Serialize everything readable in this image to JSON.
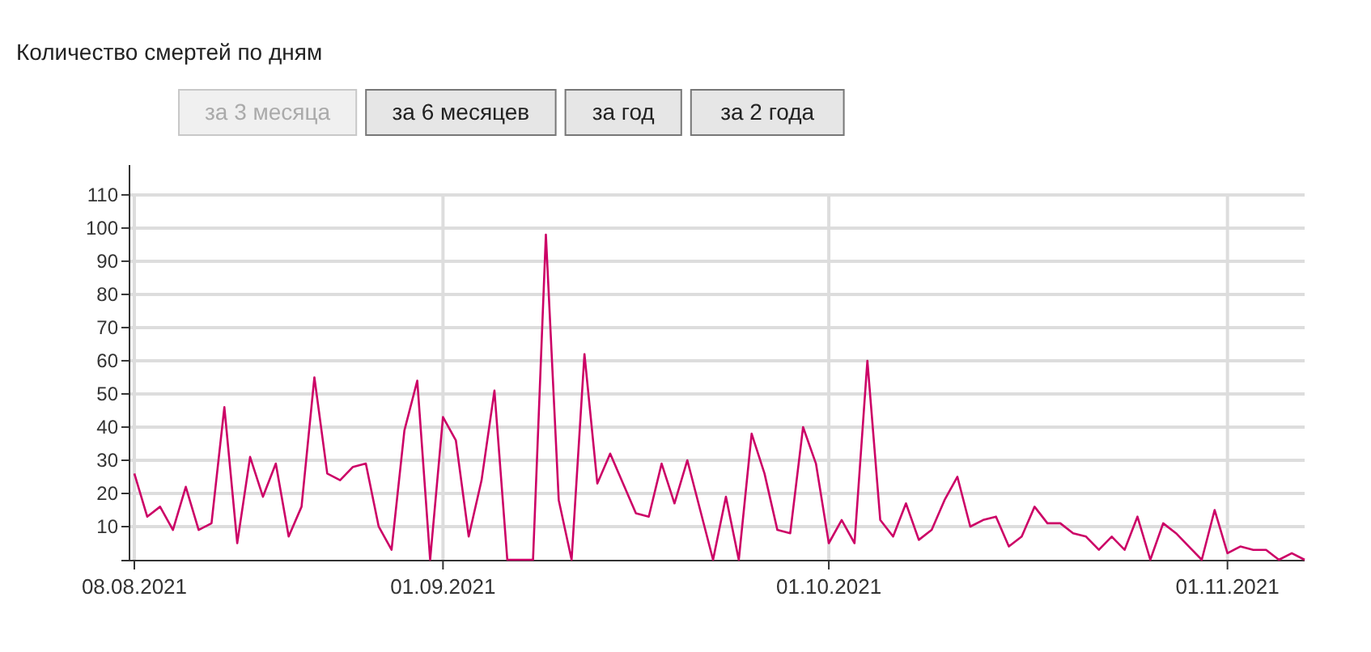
{
  "chart_data": {
    "type": "line",
    "title": "Количество смертей по дням",
    "annotations": [
      "за 3 месяца",
      "за 6 месяцев",
      "за год",
      "за 2 года"
    ],
    "x": [
      "2021-08-08",
      "2021-08-09",
      "2021-08-10",
      "2021-08-11",
      "2021-08-12",
      "2021-08-13",
      "2021-08-14",
      "2021-08-15",
      "2021-08-16",
      "2021-08-17",
      "2021-08-18",
      "2021-08-19",
      "2021-08-20",
      "2021-08-21",
      "2021-08-22",
      "2021-08-23",
      "2021-08-24",
      "2021-08-25",
      "2021-08-26",
      "2021-08-27",
      "2021-08-28",
      "2021-08-29",
      "2021-08-30",
      "2021-08-31",
      "2021-09-01",
      "2021-09-02",
      "2021-09-03",
      "2021-09-04",
      "2021-09-05",
      "2021-09-06",
      "2021-09-07",
      "2021-09-08",
      "2021-09-09",
      "2021-09-10",
      "2021-09-11",
      "2021-09-12",
      "2021-09-13",
      "2021-09-14",
      "2021-09-16",
      "2021-09-17",
      "2021-09-18",
      "2021-09-19",
      "2021-09-20",
      "2021-09-21",
      "2021-09-22",
      "2021-09-23",
      "2021-09-24",
      "2021-09-25",
      "2021-09-26",
      "2021-09-27",
      "2021-09-28",
      "2021-09-29",
      "2021-09-30",
      "2021-10-01",
      "2021-10-02",
      "2021-10-03",
      "2021-10-04",
      "2021-10-05",
      "2021-10-06",
      "2021-10-07",
      "2021-10-08",
      "2021-10-09",
      "2021-10-10",
      "2021-10-11",
      "2021-10-12",
      "2021-10-13",
      "2021-10-14",
      "2021-10-15",
      "2021-10-16",
      "2021-10-17",
      "2021-10-18",
      "2021-10-19",
      "2021-10-20",
      "2021-10-21",
      "2021-10-22",
      "2021-10-23",
      "2021-10-24",
      "2021-10-25",
      "2021-10-26",
      "2021-10-27",
      "2021-10-28",
      "2021-10-29",
      "2021-10-30",
      "2021-10-31",
      "2021-11-01",
      "2021-11-02",
      "2021-11-03",
      "2021-11-04",
      "2021-11-05",
      "2021-11-06",
      "2021-11-07"
    ],
    "series": [
      {
        "color": "#cc0066",
        "values": [
          26,
          13,
          16,
          9,
          22,
          9,
          11,
          46,
          5,
          31,
          19,
          29,
          7,
          16,
          55,
          26,
          24,
          28,
          29,
          10,
          3,
          39,
          54,
          0,
          43,
          36,
          7,
          24,
          51,
          0,
          0,
          0,
          98,
          18,
          0,
          62,
          23,
          32,
          14,
          13,
          29,
          17,
          30,
          15,
          0,
          19,
          0,
          38,
          26,
          9,
          8,
          40,
          29,
          5,
          12,
          5,
          60,
          12,
          7,
          17,
          6,
          9,
          18,
          25,
          10,
          12,
          13,
          4,
          7,
          16,
          11,
          11,
          8,
          7,
          3,
          7,
          3,
          13,
          0,
          11,
          8,
          4,
          0,
          15,
          2,
          4,
          3,
          3,
          0,
          2,
          0
        ]
      }
    ],
    "xlim": [
      "2021-08-08",
      "2021-11-07"
    ],
    "xticks": [
      {
        "value": "2021-08-08",
        "label": "08.08.2021"
      },
      {
        "value": "2021-09-01",
        "label": "01.09.2021"
      },
      {
        "value": "2021-10-01",
        "label": "01.10.2021"
      },
      {
        "value": "2021-11-01",
        "label": "01.11.2021"
      }
    ],
    "ylim": [
      0,
      119
    ],
    "yticks": [
      10,
      20,
      30,
      40,
      50,
      60,
      70,
      80,
      90,
      100,
      110
    ],
    "grid": true,
    "marker": "none",
    "line_style": "solid"
  }
}
